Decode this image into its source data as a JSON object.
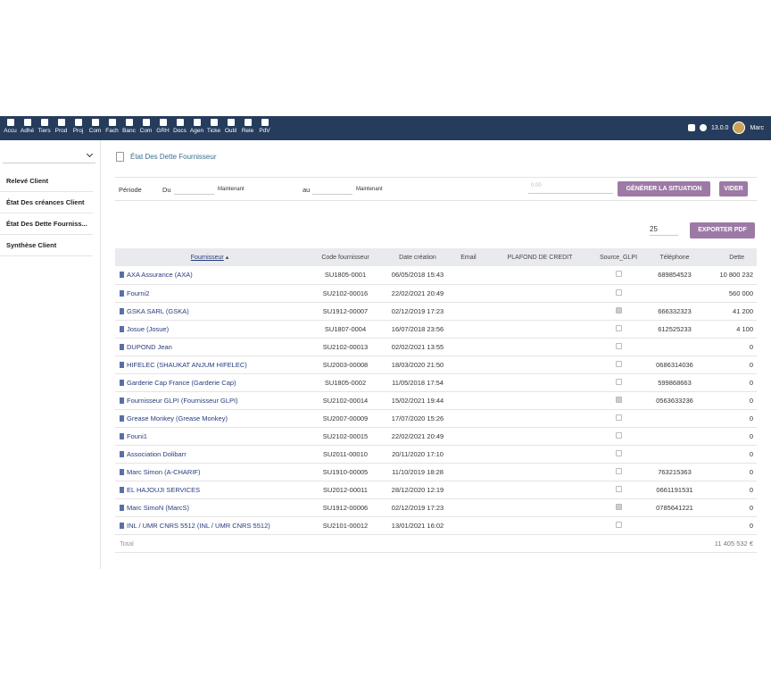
{
  "nav": {
    "items": [
      "Accu",
      "Adhé",
      "Tiers",
      "Prod",
      "Proj",
      "Com",
      "Fach",
      "Banc",
      "Com",
      "GRH",
      "Docs",
      "Agen",
      "Ticke",
      "Outil",
      "Rele",
      "PdV"
    ],
    "version": "13.0.0",
    "user": "Marc"
  },
  "sidebar": {
    "items": [
      "Relevé Client",
      "État Des créances Client",
      "État Des Dette Fourniss...",
      "Synthèse Client"
    ]
  },
  "page": {
    "title": "État Des Dette Fournisseur"
  },
  "filter": {
    "period": "Période",
    "from": "Du",
    "now_from": "Maintenant",
    "to": "au",
    "now_to": "Maintenant",
    "amount_placeholder": "0.00",
    "generate": "GÉNÉRER LA SITUATION",
    "clear": "VIDER"
  },
  "toolbar": {
    "page_size": "25",
    "export": "EXPORTER PDF"
  },
  "table": {
    "headers": [
      "Fournisseur",
      "Code fournisseur",
      "Date création",
      "Email",
      "PLAFOND DE CREDIT",
      "Source_GLPI",
      "Téléphone",
      "Dette"
    ],
    "rows": [
      {
        "supplier": "AXA Assurance (AXA)",
        "code": "SU1805-0001",
        "date": "06/05/2018 15:43",
        "glpi": false,
        "phone": "689854523",
        "debt": "10 800 232"
      },
      {
        "supplier": "Fourni2",
        "code": "SU2102-00016",
        "date": "22/02/2021 20:49",
        "glpi": false,
        "debt": "560 000"
      },
      {
        "supplier": "GSKA SARL (GSKA)",
        "code": "SU1912-00007",
        "date": "02/12/2019 17:23",
        "glpi": true,
        "phone": "666332323",
        "debt": "41 200"
      },
      {
        "supplier": "Josue (Josue)",
        "code": "SU1807-0004",
        "date": "16/07/2018 23:56",
        "glpi": false,
        "phone": "612525233",
        "debt": "4 100"
      },
      {
        "supplier": "DUPOND Jean",
        "code": "SU2102-00013",
        "date": "02/02/2021 13:55",
        "glpi": false,
        "debt": "0"
      },
      {
        "supplier": "HIFELEC (SHAUKAT ANJUM HIFELEC)",
        "code": "SU2003-00008",
        "date": "18/03/2020 21:50",
        "glpi": false,
        "phone": "0686314036",
        "debt": "0"
      },
      {
        "supplier": "Garderie Cap France (Garderie Cap)",
        "code": "SU1805-0002",
        "date": "11/05/2018 17:54",
        "glpi": false,
        "phone": "599868663",
        "debt": "0"
      },
      {
        "supplier": "Fournisseur GLPI (Fournisseur GLPI)",
        "code": "SU2102-00014",
        "date": "15/02/2021 19:44",
        "glpi": true,
        "phone": "0563633236",
        "debt": "0"
      },
      {
        "supplier": "Grease Monkey (Grease Monkey)",
        "code": "SU2007-00009",
        "date": "17/07/2020 15:26",
        "glpi": false,
        "debt": "0"
      },
      {
        "supplier": "Founi1",
        "code": "SU2102-00015",
        "date": "22/02/2021 20:49",
        "glpi": false,
        "debt": "0"
      },
      {
        "supplier": "Association Dolibarr",
        "code": "SU2011-00010",
        "date": "20/11/2020 17:10",
        "glpi": false,
        "debt": "0"
      },
      {
        "supplier": "Marc Simon (A-CHARIF)",
        "code": "SU1910-00005",
        "date": "11/10/2019 18:28",
        "glpi": false,
        "phone": "763215363",
        "debt": "0"
      },
      {
        "supplier": "EL HAJOUJI SERVICES",
        "code": "SU2012-00011",
        "date": "28/12/2020 12:19",
        "glpi": false,
        "phone": "0661191531",
        "debt": "0"
      },
      {
        "supplier": "Marc SimoN (MarcS)",
        "code": "SU1912-00006",
        "date": "02/12/2019 17:23",
        "glpi": true,
        "phone": "0785641221",
        "debt": "0"
      },
      {
        "supplier": "INL / UMR CNRS 5512 (INL / UMR CNRS 5512)",
        "code": "SU2101-00012",
        "date": "13/01/2021 16:02",
        "glpi": false,
        "debt": "0"
      }
    ],
    "total_label": "Total",
    "total": "11 405 532 €"
  }
}
